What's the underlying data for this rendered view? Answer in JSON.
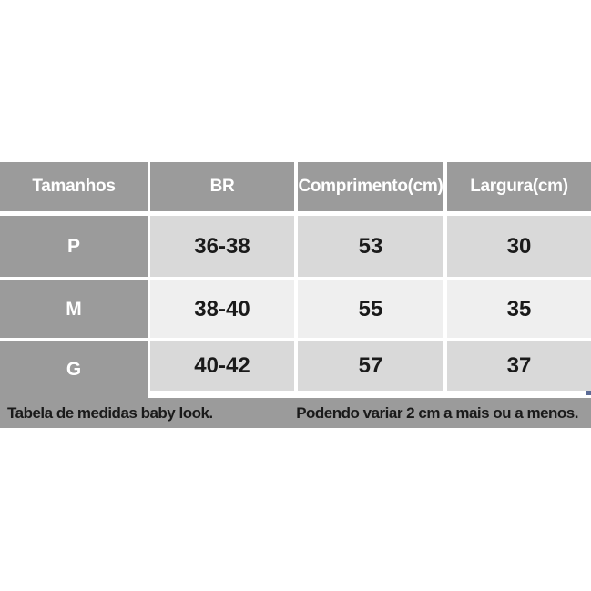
{
  "chart_data": {
    "type": "table",
    "columns": [
      "Tamanhos",
      "BR",
      "Comprimento(cm)",
      "Largura(cm)"
    ],
    "rows": [
      [
        "P",
        "36-38",
        "53",
        "30"
      ],
      [
        "M",
        "38-40",
        "55",
        "35"
      ],
      [
        "G",
        "40-42",
        "57",
        "37"
      ]
    ],
    "caption_left": "Tabela de medidas baby look.",
    "caption_right": "Podendo variar 2 cm a mais ou a menos.",
    "layout_hints": {
      "header_fill": "gray",
      "first_column_fill": "gray",
      "body_rows_alternate": [
        "light-gray",
        "lighter-gray",
        "light-gray"
      ],
      "gridlines": "white"
    }
  },
  "colors": {
    "header_bg": "#9b9b9b",
    "footer_bg": "#9b9b9b",
    "row_odd_bg": "#d9d9d9",
    "row_even_bg": "#efefef",
    "header_text": "#ffffff",
    "data_text": "#1a1a1a",
    "selection_handle": "#5b6b96"
  }
}
